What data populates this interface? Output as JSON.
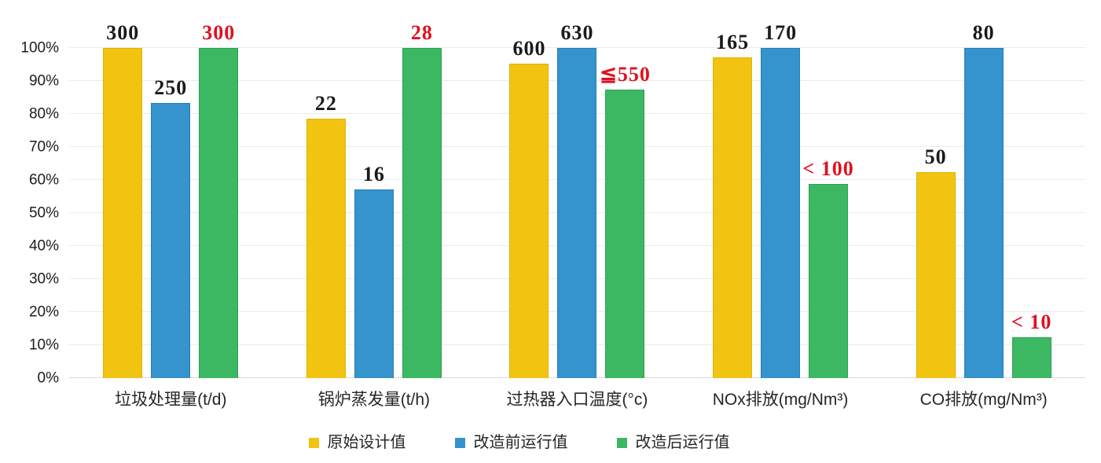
{
  "chart_data": {
    "type": "bar",
    "title": "",
    "categories": [
      "垃圾处理量(t/d)",
      "锅炉蒸发量(t/h)",
      "过热器入口温度(°c)",
      "NOx排放(mg/Nm³)",
      "CO排放(mg/Nm³)"
    ],
    "y_axis": {
      "ticks": [
        "0%",
        "10%",
        "20%",
        "30%",
        "40%",
        "50%",
        "60%",
        "70%",
        "80%",
        "90%",
        "100%"
      ],
      "min": 0,
      "max": 100,
      "grid": true,
      "note": "bar heights are percentage of each group's maximum value"
    },
    "series": [
      {
        "name": "原始设计值",
        "color": "#F2C411",
        "border_color": "#E0B200",
        "value_labels": [
          "300",
          "22",
          "600",
          "165",
          "50"
        ],
        "values_pct": [
          100,
          78.57,
          95.24,
          97.06,
          62.5
        ],
        "label_color": "#1a1a1a"
      },
      {
        "name": "改造前运行值",
        "color": "#3593CD",
        "border_color": "#2A7DB4",
        "value_labels": [
          "250",
          "16",
          "630",
          "170",
          "80"
        ],
        "values_pct": [
          83.33,
          57.14,
          100,
          100,
          100
        ],
        "label_color": "#1a1a1a"
      },
      {
        "name": "改造后运行值",
        "color": "#3CB863",
        "border_color": "#2FA053",
        "value_labels": [
          "300",
          "28",
          "≦550",
          "< 100",
          "< 10"
        ],
        "values_pct": [
          100,
          100,
          87.3,
          58.82,
          12.5
        ],
        "label_color": "#E01020"
      }
    ],
    "legend": {
      "position": "bottom",
      "items": [
        "原始设计值",
        "改造前运行值",
        "改造后运行值"
      ]
    },
    "grid_color": "#ebebeb",
    "background_color": "#ffffff"
  }
}
